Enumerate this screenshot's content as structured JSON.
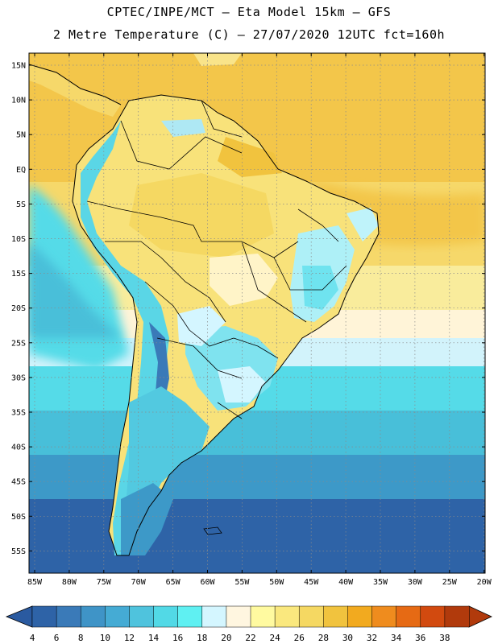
{
  "header": {
    "title_line1": "CPTEC/INPE/MCT –  Eta Model 15km – GFS",
    "title_line2": "2 Metre Temperature (C) – 27/07/2020 12UTC fct=160h"
  },
  "axes": {
    "lat_labels": [
      "15N",
      "10N",
      "5N",
      "EQ",
      "5S",
      "10S",
      "15S",
      "20S",
      "25S",
      "30S",
      "35S",
      "40S",
      "45S",
      "50S",
      "55S"
    ],
    "lon_labels": [
      "85W",
      "80W",
      "75W",
      "70W",
      "65W",
      "60W",
      "55W",
      "50W",
      "45W",
      "40W",
      "35W",
      "30W",
      "25W",
      "20W"
    ],
    "lat_range": [
      15,
      -58
    ],
    "lon_range": [
      -86,
      -20
    ]
  },
  "colorbar": {
    "values": [
      "4",
      "6",
      "8",
      "10",
      "12",
      "14",
      "16",
      "18",
      "20",
      "22",
      "24",
      "26",
      "28",
      "30",
      "32",
      "34",
      "36",
      "38"
    ],
    "colors": [
      "#2e63a7",
      "#3a7ab8",
      "#3f94c7",
      "#45abd4",
      "#4fc3dd",
      "#52d9e6",
      "#5ff0f2",
      "#d4f6ff",
      "#fff6e0",
      "#fffaa0",
      "#fae87e",
      "#f5d862",
      "#f1c33e",
      "#f2aa1f",
      "#ef8c1e",
      "#e66a14",
      "#d24a0f",
      "#b13a0c"
    ],
    "left_arrow_color": "#2a5aa0",
    "right_arrow_color": "#b13a0c"
  },
  "chart_data": {
    "type": "heatmap",
    "title": "2 Metre Temperature (C)",
    "model": "Eta Model 15km - GFS",
    "run": "27/07/2020 12UTC",
    "forecast_hour": "fct=160h",
    "units": "C",
    "x_range_deg": [
      -86,
      -20
    ],
    "y_range_deg": [
      -58,
      16
    ]
  }
}
